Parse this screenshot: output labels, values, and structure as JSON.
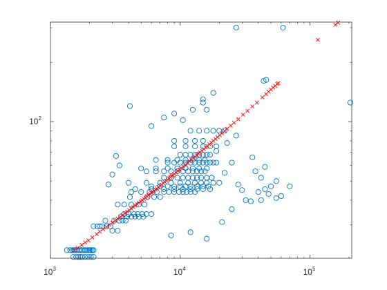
{
  "chart_data": {
    "type": "scatter",
    "title": "",
    "xlabel": "",
    "ylabel": "",
    "xscale": "log",
    "yscale": "log",
    "xlim": [
      1000,
      210000
    ],
    "ylim": [
      20.3,
      320
    ],
    "grid": false,
    "legend": "none",
    "x_ticks": [
      {
        "value": 1000,
        "base": "10",
        "exp": "3"
      },
      {
        "value": 10000,
        "base": "10",
        "exp": "4"
      },
      {
        "value": 100000,
        "base": "10",
        "exp": "5"
      }
    ],
    "y_ticks": [
      {
        "value": 100,
        "base": "10",
        "exp": "2"
      }
    ],
    "series": [
      {
        "marker": "circle",
        "color": "#0072BD",
        "x": [
          1340,
          1420,
          1480,
          1520,
          1560,
          1600,
          1650,
          1700,
          1750,
          1800,
          1850,
          1900,
          1950,
          2000,
          2050,
          2100,
          2150,
          1500,
          1580,
          1640,
          1700,
          1760,
          1850,
          1950,
          2050,
          2150,
          2150,
          2300,
          2400,
          2500,
          2700,
          2900,
          2650,
          3100,
          3400,
          3600,
          3800,
          3000,
          3300,
          3500,
          3900,
          4200,
          4500,
          4800,
          5200,
          3700,
          4000,
          4400,
          4700,
          5100,
          5500,
          6000,
          3300,
          3700,
          4200,
          4800,
          5300,
          4100,
          5600,
          6300,
          7000,
          4200,
          5000,
          5800,
          6600,
          7500,
          8200,
          9000,
          9800,
          10500,
          11200,
          12000,
          13000,
          6000,
          7000,
          8000,
          9000,
          10000,
          11000,
          12000,
          13500,
          15000,
          16500,
          7500,
          8500,
          9500,
          10500,
          11500,
          12500,
          13500,
          14500,
          16000,
          17500,
          5500,
          6500,
          7500,
          8500,
          9500,
          10500,
          11500,
          12500,
          13500,
          14500,
          15500,
          8000,
          9000,
          10000,
          11000,
          12000,
          13000,
          14000,
          15000,
          16000,
          17000,
          18000,
          19000,
          10000,
          11000,
          12000,
          13000,
          14000,
          15000,
          16000,
          17000,
          9000,
          11000,
          13000,
          15000,
          17000,
          19000,
          12000,
          14000,
          16000,
          18000,
          20000,
          22000,
          4000,
          5500,
          7000,
          8500,
          10000,
          11500,
          13000,
          14500,
          16000,
          18000,
          20000,
          4500,
          6000,
          7500,
          9000,
          10500,
          12000,
          13500,
          15000,
          17000,
          5000,
          6500,
          8000,
          9500,
          11000,
          12500,
          14000,
          16000,
          6500,
          8000,
          9500,
          11000,
          12500,
          14000,
          15500,
          9000,
          11000,
          13000,
          15000,
          22000,
          25000,
          28000,
          32000,
          36000,
          42000,
          45000,
          48000,
          55000,
          35000,
          40000,
          42000,
          50000,
          55000,
          60000,
          70000,
          30000,
          38000,
          45000,
          15000,
          16000,
          18000,
          4100,
          27000,
          62000,
          205000,
          44000,
          46000,
          8500,
          12000,
          16000,
          21000,
          25000,
          19000,
          23000,
          27000,
          3400,
          3000,
          2800,
          3200,
          7500,
          9000,
          6000,
          10500,
          12500,
          15000
        ],
        "y": [
          22.3,
          22.3,
          22.3,
          22.3,
          22.3,
          22.3,
          22.3,
          22.3,
          22.3,
          22.3,
          22.3,
          22.3,
          22.3,
          22.3,
          22.3,
          22.3,
          22.3,
          20.6,
          20.6,
          20.6,
          20.6,
          20.6,
          20.6,
          20.6,
          20.6,
          20.6,
          29.5,
          29.5,
          29.5,
          29.5,
          29.5,
          29.5,
          31.5,
          31.5,
          31.5,
          31.5,
          31.5,
          28.0,
          28.0,
          33.0,
          33.0,
          33.0,
          33.0,
          33.0,
          33.0,
          34.0,
          34.0,
          34.0,
          34.0,
          34.0,
          34.0,
          34.0,
          38.0,
          38.0,
          38.0,
          38.0,
          38.0,
          41.5,
          41.5,
          41.5,
          41.5,
          44.0,
          44.0,
          44.0,
          44.0,
          44.0,
          44.0,
          44.0,
          44.0,
          44.0,
          44.0,
          44.0,
          44.0,
          47.0,
          47.0,
          47.0,
          47.0,
          47.0,
          47.0,
          47.0,
          47.0,
          47.0,
          47.0,
          52.0,
          52.0,
          52.0,
          52.0,
          52.0,
          52.0,
          52.0,
          52.0,
          52.0,
          52.0,
          56.0,
          56.0,
          56.0,
          56.0,
          56.0,
          56.0,
          56.0,
          56.0,
          56.0,
          56.0,
          56.0,
          62.0,
          62.0,
          62.0,
          62.0,
          62.0,
          62.0,
          62.0,
          62.0,
          62.0,
          62.0,
          62.0,
          62.0,
          68.0,
          68.0,
          68.0,
          68.0,
          68.0,
          68.0,
          68.0,
          68.0,
          75.0,
          75.0,
          75.0,
          75.0,
          75.0,
          75.0,
          90.0,
          90.0,
          90.0,
          90.0,
          90.0,
          90.0,
          49.0,
          49.0,
          49.0,
          49.0,
          49.0,
          49.0,
          49.0,
          49.0,
          49.0,
          49.0,
          49.0,
          45.5,
          45.5,
          45.5,
          45.5,
          45.5,
          45.5,
          45.5,
          45.5,
          45.5,
          58.0,
          58.0,
          58.0,
          58.0,
          58.0,
          58.0,
          58.0,
          58.0,
          64.0,
          64.0,
          64.0,
          64.0,
          64.0,
          64.0,
          64.0,
          80.0,
          80.0,
          80.0,
          80.0,
          55.0,
          62.0,
          48.0,
          40.0,
          66.0,
          52.0,
          59.0,
          43.0,
          50.0,
          39.5,
          44.0,
          40.0,
          47.0,
          41.0,
          42.0,
          47.0,
          45.0,
          56.0,
          45.5,
          130,
          115,
          140,
          120,
          300,
          300,
          125,
          161,
          163,
          26.5,
          27.5,
          25.5,
          31.0,
          36.0,
          71,
          78,
          85,
          60.0,
          54.0,
          48.0,
          67.0,
          105,
          110,
          95,
          102,
          115,
          125
        ]
      },
      {
        "marker": "x",
        "color": "#FF0000",
        "x": [
          1530,
          1620,
          1740,
          1850,
          1960,
          2100,
          2270,
          2400,
          2550,
          2700,
          2850,
          3000,
          3150,
          3300,
          3450,
          3600,
          3750,
          3900,
          4050,
          4200,
          4350,
          4500,
          4650,
          4800,
          4950,
          5100,
          5250,
          5400,
          5550,
          5700,
          5850,
          6000,
          6150,
          6300,
          6450,
          6600,
          6800,
          7000,
          7200,
          7400,
          7600,
          7800,
          8000,
          8200,
          8400,
          8600,
          8800,
          9000,
          9300,
          9600,
          9900,
          10200,
          10600,
          11000,
          11400,
          11800,
          12200,
          12600,
          13000,
          13400,
          13800,
          14200,
          14700,
          15200,
          15700,
          16200,
          16800,
          17400,
          18000,
          18700,
          19400,
          20200,
          21000,
          22000,
          23000,
          24500,
          26000,
          28000,
          30500,
          33000,
          36000,
          39000,
          43000,
          46000,
          48000,
          50000,
          52000,
          54000,
          56000,
          57000,
          115000,
          157000,
          165000
        ],
        "y": [
          22.3,
          22.9,
          23.7,
          24.4,
          25.0,
          25.9,
          26.9,
          27.7,
          28.5,
          29.3,
          30.0,
          30.8,
          31.5,
          32.2,
          32.9,
          33.6,
          34.3,
          35.0,
          35.6,
          36.3,
          36.9,
          37.6,
          38.2,
          38.8,
          39.4,
          40.0,
          40.6,
          41.2,
          41.8,
          42.4,
          43.0,
          43.6,
          44.1,
          44.7,
          45.3,
          45.8,
          46.6,
          47.3,
          48.0,
          48.8,
          49.5,
          50.2,
          50.9,
          51.6,
          52.3,
          53.0,
          53.6,
          54.3,
          55.3,
          56.3,
          57.2,
          58.2,
          59.4,
          60.6,
          61.8,
          63.0,
          64.2,
          65.4,
          66.5,
          67.7,
          68.8,
          69.9,
          71.3,
          72.6,
          74.0,
          75.3,
          76.9,
          78.4,
          80.0,
          81.8,
          83.5,
          85.5,
          87.4,
          89.8,
          92.1,
          95.5,
          98.8,
          103,
          108.5,
          113.5,
          119.5,
          125,
          133,
          138,
          142,
          145.5,
          149,
          152,
          155.5,
          157,
          260,
          310,
          318
        ]
      }
    ]
  }
}
